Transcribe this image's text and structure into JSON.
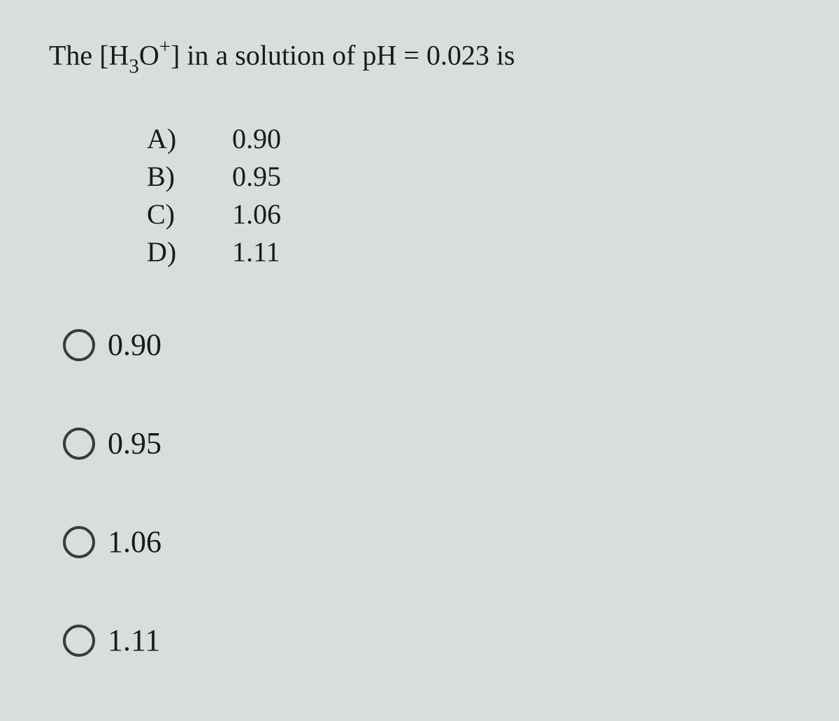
{
  "colors": {
    "background": "#d9dddc",
    "text": "#1a1a1a",
    "radio_border": "#3a3a3a"
  },
  "question": {
    "prefix": "The [H",
    "sub": "3",
    "mid": "O",
    "sup": "+",
    "suffix": "] in a solution of pH = 0.023 is"
  },
  "choice_list": [
    {
      "label": "A)",
      "value": "0.90"
    },
    {
      "label": "B)",
      "value": "0.95"
    },
    {
      "label": "C)",
      "value": "1.06"
    },
    {
      "label": "D)",
      "value": "1.11"
    }
  ],
  "answer_options": [
    {
      "value": "0.90",
      "selected": false
    },
    {
      "value": "0.95",
      "selected": false
    },
    {
      "value": "1.06",
      "selected": false
    },
    {
      "value": "1.11",
      "selected": false
    }
  ]
}
